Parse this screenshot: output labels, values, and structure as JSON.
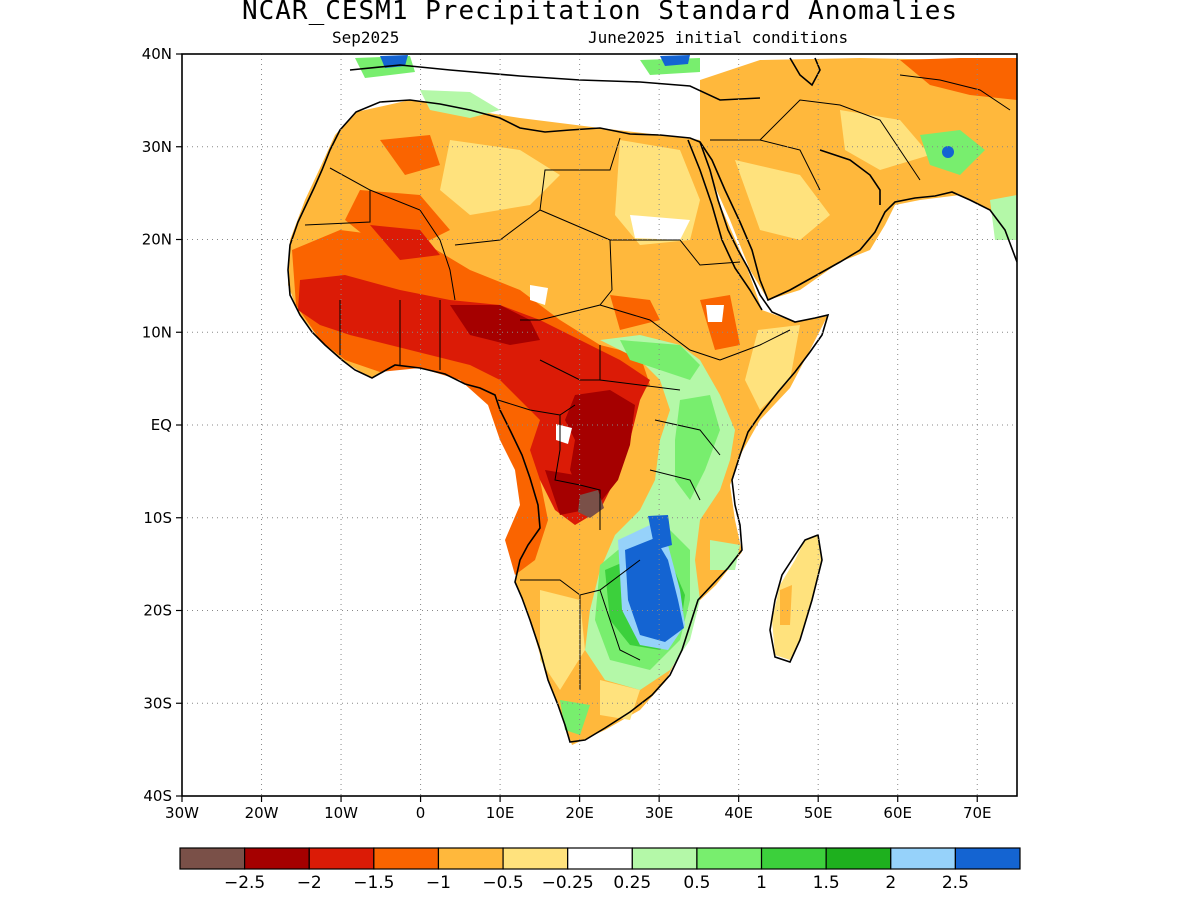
{
  "title": "NCAR_CESM1 Precipitation Standard Anomalies",
  "subtitle_left": "Sep2025",
  "subtitle_right": "June2025 initial conditions",
  "map": {
    "lon_range": [
      -30,
      75
    ],
    "lat_range": [
      -40,
      40
    ],
    "lat_ticks": [
      {
        "value": 40,
        "label": "40N"
      },
      {
        "value": 30,
        "label": "30N"
      },
      {
        "value": 20,
        "label": "20N"
      },
      {
        "value": 10,
        "label": "10N"
      },
      {
        "value": 0,
        "label": "EQ"
      },
      {
        "value": -10,
        "label": "10S"
      },
      {
        "value": -20,
        "label": "20S"
      },
      {
        "value": -30,
        "label": "30S"
      },
      {
        "value": -40,
        "label": "40S"
      }
    ],
    "lon_ticks": [
      {
        "value": -30,
        "label": "30W"
      },
      {
        "value": -20,
        "label": "20W"
      },
      {
        "value": -10,
        "label": "10W"
      },
      {
        "value": 0,
        "label": "0"
      },
      {
        "value": 10,
        "label": "10E"
      },
      {
        "value": 20,
        "label": "20E"
      },
      {
        "value": 30,
        "label": "30E"
      },
      {
        "value": 40,
        "label": "40E"
      },
      {
        "value": 50,
        "label": "50E"
      },
      {
        "value": 60,
        "label": "60E"
      },
      {
        "value": 70,
        "label": "70E"
      }
    ],
    "gridlines": "dotted"
  },
  "colorbar": {
    "colors": [
      "#7a5048",
      "#a50000",
      "#db1b06",
      "#fa6400",
      "#ffb83c",
      "#ffe27d",
      "#ffffff",
      "#b4f8a8",
      "#78ee6e",
      "#3cd03c",
      "#1eb01e",
      "#96d2fa",
      "#1464d2"
    ],
    "labels": [
      "-2.5",
      "-2",
      "-1.5",
      "-1",
      "-0.5",
      "-0.25",
      "0.25",
      "0.5",
      "1",
      "1.5",
      "2",
      "2.5"
    ]
  }
}
